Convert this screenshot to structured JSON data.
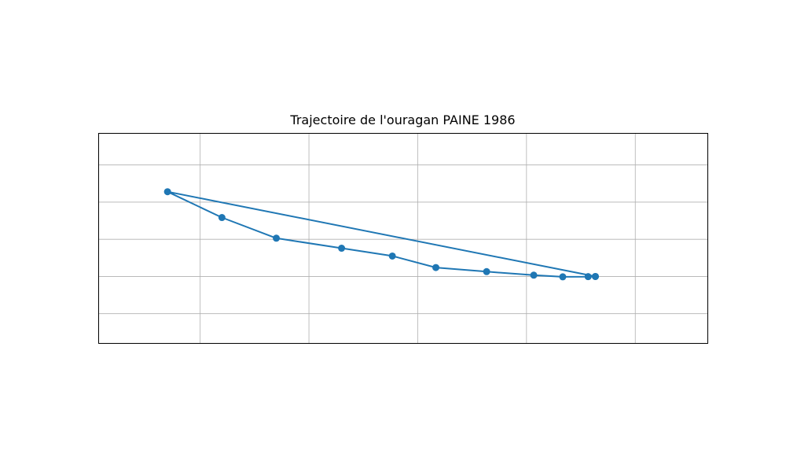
{
  "chart_data": {
    "type": "line",
    "title": "Trajectoire de l'ouragan PAINE 1986",
    "xlabel": "",
    "ylabel": "",
    "grid": true,
    "axis_ticks_labeled": false,
    "series": [
      {
        "color": "#1f77b4",
        "marker": "circle",
        "points": [
          {
            "x": 0.67,
            "y": 0.0
          },
          {
            "x": 0.65,
            "y": -0.01
          },
          {
            "x": 0.58,
            "y": -0.02
          },
          {
            "x": 0.5,
            "y": 0.07
          },
          {
            "x": 0.37,
            "y": 0.26
          },
          {
            "x": 0.23,
            "y": 0.48
          },
          {
            "x": 0.11,
            "y": 1.1
          },
          {
            "x": -0.03,
            "y": 1.52
          },
          {
            "x": -0.21,
            "y": 2.06
          },
          {
            "x": -0.36,
            "y": 3.17
          },
          {
            "x": -0.51,
            "y": 4.56
          },
          {
            "x": 0.67,
            "y": 0.0
          }
        ]
      }
    ],
    "xlim": [
      -0.7,
      0.98
    ],
    "ylim": [
      -3.6,
      7.7
    ],
    "xgrid": [
      -0.42,
      -0.12,
      0.18,
      0.48,
      0.78
    ],
    "ygrid": [
      -2.0,
      0.0,
      2.0,
      4.0,
      6.0
    ]
  }
}
